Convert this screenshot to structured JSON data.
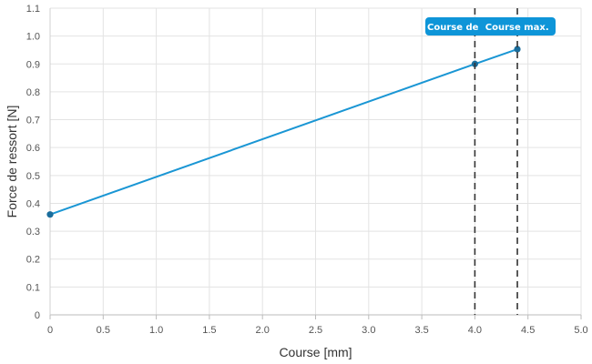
{
  "chart_data": {
    "type": "line",
    "title": "",
    "xlabel": "Course [mm]",
    "ylabel": "Force de ressort [N]",
    "xlim": [
      0,
      5
    ],
    "ylim": [
      0,
      1.1
    ],
    "x_ticks": [
      "0",
      "0.5",
      "1.0",
      "1.5",
      "2.0",
      "2.5",
      "3.0",
      "3.5",
      "4.0",
      "4.5",
      "5.0"
    ],
    "y_ticks": [
      "0",
      "0.1",
      "0.2",
      "0.3",
      "0.4",
      "0.5",
      "0.6",
      "0.7",
      "0.8",
      "0.9",
      "1.0",
      "1.1"
    ],
    "grid": true,
    "series": [
      {
        "x": [
          0,
          4.0,
          4.4
        ],
        "y": [
          0.36,
          0.9,
          0.953
        ]
      }
    ],
    "markers": [
      {
        "x": 4.0,
        "label": "Course de"
      },
      {
        "x": 4.4,
        "label": "Course max."
      }
    ],
    "colors": {
      "line": "#1a96d4",
      "point": "#1a6d9c",
      "grid": "#e3e3e3",
      "marker_line": "#333333",
      "label_bg": "#0e95d8"
    }
  }
}
